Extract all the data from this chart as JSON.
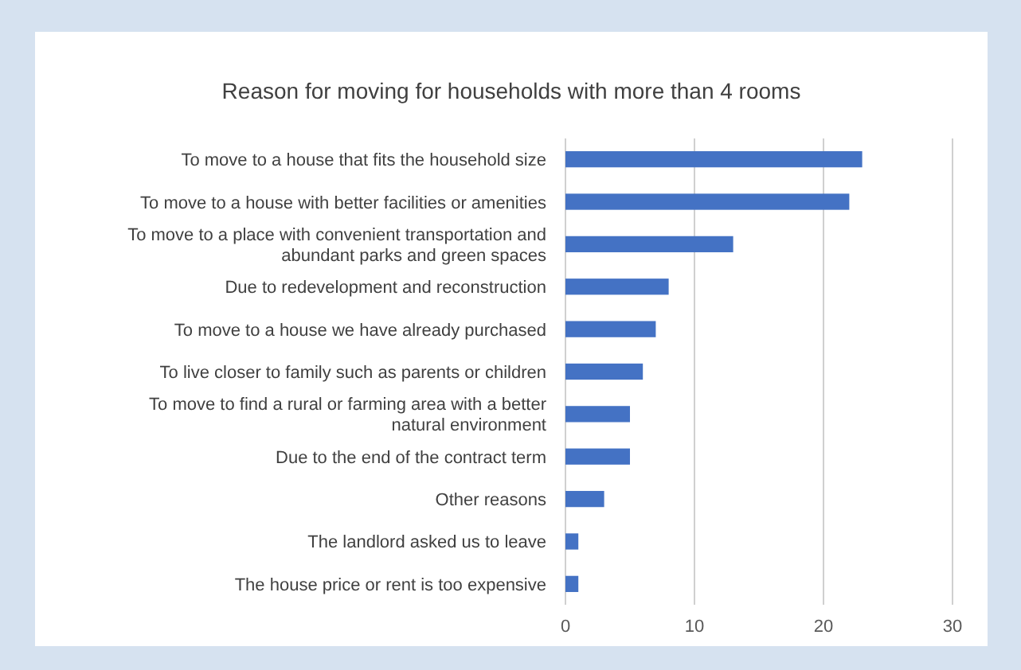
{
  "chart_data": {
    "type": "bar",
    "orientation": "horizontal",
    "title": "Reason for moving for households with more than 4 rooms",
    "categories": [
      "To move to a house that fits the household size",
      "To move to a house with better facilities or amenities",
      "To move to a place with convenient transportation and abundant parks and green spaces",
      "Due to redevelopment and reconstruction",
      "To move to a house we have already purchased",
      "To live closer to family such as parents or children",
      "To move to find a rural or farming area with a better natural environment",
      "Due to the end of the contract term",
      "Other reasons",
      "The landlord asked us to leave",
      "The house price or rent is too expensive"
    ],
    "values": [
      23,
      22,
      13,
      8,
      7,
      6,
      5,
      5,
      3,
      1,
      1
    ],
    "color": "#4472c4",
    "xlim": [
      0,
      30
    ],
    "xticks": [
      0,
      10,
      20,
      30
    ],
    "grid": "x"
  }
}
